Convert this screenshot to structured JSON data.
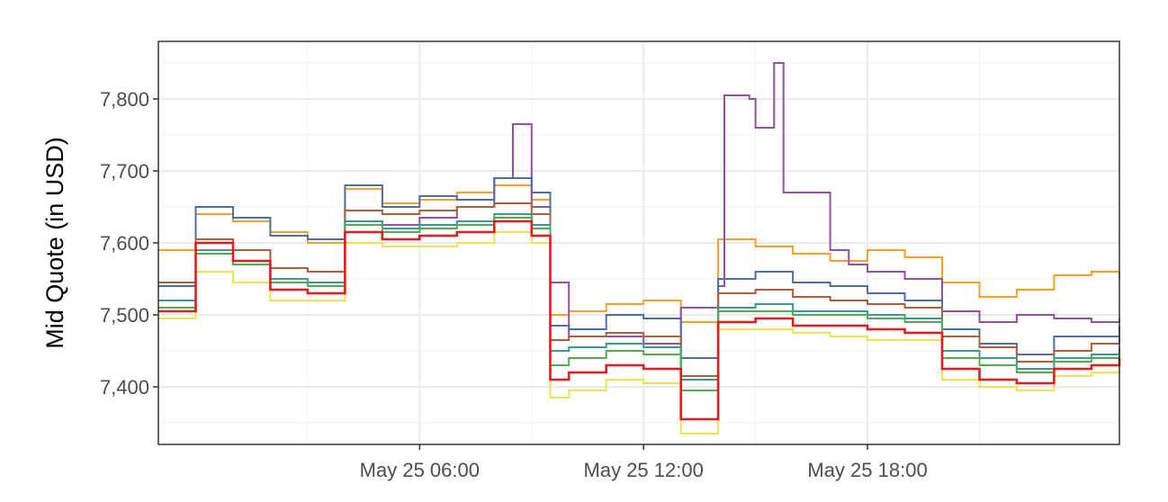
{
  "chart_data": {
    "type": "line",
    "title": "",
    "xlabel": "",
    "ylabel": "Mid Quote (in USD)",
    "x_range": [
      "2018-05-24 23:00",
      "2018-05-26 00:45"
    ],
    "ylim": [
      7320,
      7880
    ],
    "x_ticks": [
      {
        "x": "2018-05-25 06:00",
        "label": "May 25 06:00"
      },
      {
        "x": "2018-05-25 12:00",
        "label": "May 25 12:00"
      },
      {
        "x": "2018-05-25 18:00",
        "label": "May 25 18:00"
      }
    ],
    "y_ticks": [
      {
        "y": 7400,
        "label": "7,400"
      },
      {
        "y": 7500,
        "label": "7,500"
      },
      {
        "y": 7600,
        "label": "7,600"
      },
      {
        "y": 7700,
        "label": "7,700"
      },
      {
        "y": 7800,
        "label": "7,800"
      }
    ],
    "grid": true,
    "legend": "none",
    "series": [
      {
        "color": "#ff9f1c",
        "points": [
          [
            "2018-05-24 23:00",
            7590
          ],
          [
            "2018-05-25 00:00",
            7640
          ],
          [
            "2018-05-25 01:00",
            7630
          ],
          [
            "2018-05-25 02:00",
            7615
          ],
          [
            "2018-05-25 03:00",
            7600
          ],
          [
            "2018-05-25 04:00",
            7675
          ],
          [
            "2018-05-25 05:00",
            7655
          ],
          [
            "2018-05-25 06:00",
            7660
          ],
          [
            "2018-05-25 07:00",
            7670
          ],
          [
            "2018-05-25 08:00",
            7680
          ],
          [
            "2018-05-25 09:00",
            7660
          ],
          [
            "2018-05-25 09:30",
            7500
          ],
          [
            "2018-05-25 10:00",
            7505
          ],
          [
            "2018-05-25 11:00",
            7515
          ],
          [
            "2018-05-25 12:00",
            7520
          ],
          [
            "2018-05-25 13:00",
            7490
          ],
          [
            "2018-05-25 14:00",
            7605
          ],
          [
            "2018-05-25 15:00",
            7595
          ],
          [
            "2018-05-25 16:00",
            7585
          ],
          [
            "2018-05-25 17:00",
            7575
          ],
          [
            "2018-05-25 18:00",
            7590
          ],
          [
            "2018-05-25 19:00",
            7580
          ],
          [
            "2018-05-25 20:00",
            7545
          ],
          [
            "2018-05-25 21:00",
            7525
          ],
          [
            "2018-05-25 22:00",
            7535
          ],
          [
            "2018-05-25 23:00",
            7555
          ],
          [
            "2018-05-26 00:00",
            7560
          ],
          [
            "2018-05-26 00:45",
            7550
          ]
        ]
      },
      {
        "color": "#984ea3",
        "points": [
          [
            "2018-05-24 23:00",
            7520
          ],
          [
            "2018-05-25 00:00",
            7600
          ],
          [
            "2018-05-25 01:00",
            7590
          ],
          [
            "2018-05-25 02:00",
            7565
          ],
          [
            "2018-05-25 03:00",
            7560
          ],
          [
            "2018-05-25 04:00",
            7630
          ],
          [
            "2018-05-25 05:00",
            7625
          ],
          [
            "2018-05-25 06:00",
            7635
          ],
          [
            "2018-05-25 07:00",
            7650
          ],
          [
            "2018-05-25 08:00",
            7690
          ],
          [
            "2018-05-25 08:30",
            7765
          ],
          [
            "2018-05-25 09:00",
            7650
          ],
          [
            "2018-05-25 09:30",
            7545
          ],
          [
            "2018-05-25 10:00",
            7470
          ],
          [
            "2018-05-25 11:00",
            7470
          ],
          [
            "2018-05-25 12:00",
            7460
          ],
          [
            "2018-05-25 13:00",
            7510
          ],
          [
            "2018-05-25 14:00",
            7540
          ],
          [
            "2018-05-25 14:10",
            7805
          ],
          [
            "2018-05-25 14:50",
            7800
          ],
          [
            "2018-05-25 15:00",
            7760
          ],
          [
            "2018-05-25 15:30",
            7850
          ],
          [
            "2018-05-25 15:45",
            7670
          ],
          [
            "2018-05-25 16:30",
            7670
          ],
          [
            "2018-05-25 17:00",
            7590
          ],
          [
            "2018-05-25 17:30",
            7570
          ],
          [
            "2018-05-25 18:00",
            7560
          ],
          [
            "2018-05-25 19:00",
            7550
          ],
          [
            "2018-05-25 20:00",
            7505
          ],
          [
            "2018-05-25 21:00",
            7490
          ],
          [
            "2018-05-25 22:00",
            7500
          ],
          [
            "2018-05-25 23:00",
            7495
          ],
          [
            "2018-05-26 00:00",
            7490
          ],
          [
            "2018-05-26 00:45",
            7495
          ]
        ]
      },
      {
        "color": "#4a6fb0",
        "points": [
          [
            "2018-05-24 23:00",
            7540
          ],
          [
            "2018-05-25 00:00",
            7650
          ],
          [
            "2018-05-25 01:00",
            7635
          ],
          [
            "2018-05-25 02:00",
            7610
          ],
          [
            "2018-05-25 03:00",
            7605
          ],
          [
            "2018-05-25 04:00",
            7680
          ],
          [
            "2018-05-25 05:00",
            7650
          ],
          [
            "2018-05-25 06:00",
            7665
          ],
          [
            "2018-05-25 07:00",
            7660
          ],
          [
            "2018-05-25 08:00",
            7690
          ],
          [
            "2018-05-25 09:00",
            7670
          ],
          [
            "2018-05-25 09:30",
            7485
          ],
          [
            "2018-05-25 10:00",
            7480
          ],
          [
            "2018-05-25 11:00",
            7500
          ],
          [
            "2018-05-25 12:00",
            7495
          ],
          [
            "2018-05-25 13:00",
            7440
          ],
          [
            "2018-05-25 14:00",
            7550
          ],
          [
            "2018-05-25 15:00",
            7560
          ],
          [
            "2018-05-25 16:00",
            7545
          ],
          [
            "2018-05-25 17:00",
            7540
          ],
          [
            "2018-05-25 18:00",
            7530
          ],
          [
            "2018-05-25 19:00",
            7520
          ],
          [
            "2018-05-25 20:00",
            7480
          ],
          [
            "2018-05-25 21:00",
            7460
          ],
          [
            "2018-05-25 22:00",
            7445
          ],
          [
            "2018-05-25 23:00",
            7470
          ],
          [
            "2018-05-26 00:00",
            7470
          ],
          [
            "2018-05-26 00:45",
            7485
          ]
        ]
      },
      {
        "color": "#b85c38",
        "points": [
          [
            "2018-05-24 23:00",
            7545
          ],
          [
            "2018-05-25 00:00",
            7605
          ],
          [
            "2018-05-25 01:00",
            7590
          ],
          [
            "2018-05-25 02:00",
            7565
          ],
          [
            "2018-05-25 03:00",
            7560
          ],
          [
            "2018-05-25 04:00",
            7645
          ],
          [
            "2018-05-25 05:00",
            7640
          ],
          [
            "2018-05-25 06:00",
            7645
          ],
          [
            "2018-05-25 07:00",
            7650
          ],
          [
            "2018-05-25 08:00",
            7655
          ],
          [
            "2018-05-25 09:00",
            7640
          ],
          [
            "2018-05-25 09:30",
            7465
          ],
          [
            "2018-05-25 10:00",
            7470
          ],
          [
            "2018-05-25 11:00",
            7475
          ],
          [
            "2018-05-25 12:00",
            7470
          ],
          [
            "2018-05-25 13:00",
            7415
          ],
          [
            "2018-05-25 14:00",
            7530
          ],
          [
            "2018-05-25 15:00",
            7535
          ],
          [
            "2018-05-25 16:00",
            7525
          ],
          [
            "2018-05-25 17:00",
            7520
          ],
          [
            "2018-05-25 18:00",
            7515
          ],
          [
            "2018-05-25 19:00",
            7510
          ],
          [
            "2018-05-25 20:00",
            7470
          ],
          [
            "2018-05-25 21:00",
            7455
          ],
          [
            "2018-05-25 22:00",
            7435
          ],
          [
            "2018-05-25 23:00",
            7450
          ],
          [
            "2018-05-26 00:00",
            7460
          ],
          [
            "2018-05-26 00:45",
            7475
          ]
        ]
      },
      {
        "color": "#2f9e93",
        "points": [
          [
            "2018-05-24 23:00",
            7520
          ],
          [
            "2018-05-25 00:00",
            7590
          ],
          [
            "2018-05-25 01:00",
            7575
          ],
          [
            "2018-05-25 02:00",
            7550
          ],
          [
            "2018-05-25 03:00",
            7545
          ],
          [
            "2018-05-25 04:00",
            7630
          ],
          [
            "2018-05-25 05:00",
            7620
          ],
          [
            "2018-05-25 06:00",
            7625
          ],
          [
            "2018-05-25 07:00",
            7630
          ],
          [
            "2018-05-25 08:00",
            7640
          ],
          [
            "2018-05-25 09:00",
            7625
          ],
          [
            "2018-05-25 09:30",
            7450
          ],
          [
            "2018-05-25 10:00",
            7455
          ],
          [
            "2018-05-25 11:00",
            7460
          ],
          [
            "2018-05-25 12:00",
            7455
          ],
          [
            "2018-05-25 13:00",
            7410
          ],
          [
            "2018-05-25 14:00",
            7510
          ],
          [
            "2018-05-25 15:00",
            7515
          ],
          [
            "2018-05-25 16:00",
            7505
          ],
          [
            "2018-05-25 17:00",
            7505
          ],
          [
            "2018-05-25 18:00",
            7500
          ],
          [
            "2018-05-25 19:00",
            7495
          ],
          [
            "2018-05-25 20:00",
            7450
          ],
          [
            "2018-05-25 21:00",
            7440
          ],
          [
            "2018-05-25 22:00",
            7425
          ],
          [
            "2018-05-25 23:00",
            7440
          ],
          [
            "2018-05-26 00:00",
            7445
          ],
          [
            "2018-05-26 00:45",
            7455
          ]
        ]
      },
      {
        "color": "#4daf4a",
        "points": [
          [
            "2018-05-24 23:00",
            7510
          ],
          [
            "2018-05-25 00:00",
            7585
          ],
          [
            "2018-05-25 01:00",
            7570
          ],
          [
            "2018-05-25 02:00",
            7545
          ],
          [
            "2018-05-25 03:00",
            7540
          ],
          [
            "2018-05-25 04:00",
            7625
          ],
          [
            "2018-05-25 05:00",
            7615
          ],
          [
            "2018-05-25 06:00",
            7620
          ],
          [
            "2018-05-25 07:00",
            7625
          ],
          [
            "2018-05-25 08:00",
            7635
          ],
          [
            "2018-05-25 09:00",
            7620
          ],
          [
            "2018-05-25 09:30",
            7430
          ],
          [
            "2018-05-25 10:00",
            7440
          ],
          [
            "2018-05-25 11:00",
            7450
          ],
          [
            "2018-05-25 12:00",
            7445
          ],
          [
            "2018-05-25 13:00",
            7395
          ],
          [
            "2018-05-25 14:00",
            7505
          ],
          [
            "2018-05-25 15:00",
            7505
          ],
          [
            "2018-05-25 16:00",
            7500
          ],
          [
            "2018-05-25 17:00",
            7500
          ],
          [
            "2018-05-25 18:00",
            7495
          ],
          [
            "2018-05-25 19:00",
            7490
          ],
          [
            "2018-05-25 20:00",
            7440
          ],
          [
            "2018-05-25 21:00",
            7430
          ],
          [
            "2018-05-25 22:00",
            7420
          ],
          [
            "2018-05-25 23:00",
            7435
          ],
          [
            "2018-05-26 00:00",
            7440
          ],
          [
            "2018-05-26 00:45",
            7450
          ]
        ]
      },
      {
        "color": "#f0e442",
        "points": [
          [
            "2018-05-24 23:00",
            7495
          ],
          [
            "2018-05-25 00:00",
            7560
          ],
          [
            "2018-05-25 01:00",
            7545
          ],
          [
            "2018-05-25 02:00",
            7520
          ],
          [
            "2018-05-25 03:00",
            7520
          ],
          [
            "2018-05-25 04:00",
            7600
          ],
          [
            "2018-05-25 05:00",
            7595
          ],
          [
            "2018-05-25 06:00",
            7595
          ],
          [
            "2018-05-25 07:00",
            7600
          ],
          [
            "2018-05-25 08:00",
            7615
          ],
          [
            "2018-05-25 09:00",
            7600
          ],
          [
            "2018-05-25 09:30",
            7385
          ],
          [
            "2018-05-25 10:00",
            7395
          ],
          [
            "2018-05-25 11:00",
            7410
          ],
          [
            "2018-05-25 12:00",
            7405
          ],
          [
            "2018-05-25 13:00",
            7335
          ],
          [
            "2018-05-25 14:00",
            7480
          ],
          [
            "2018-05-25 15:00",
            7480
          ],
          [
            "2018-05-25 16:00",
            7475
          ],
          [
            "2018-05-25 17:00",
            7470
          ],
          [
            "2018-05-25 18:00",
            7465
          ],
          [
            "2018-05-25 19:00",
            7465
          ],
          [
            "2018-05-25 20:00",
            7410
          ],
          [
            "2018-05-25 21:00",
            7400
          ],
          [
            "2018-05-25 22:00",
            7395
          ],
          [
            "2018-05-25 23:00",
            7415
          ],
          [
            "2018-05-26 00:00",
            7420
          ],
          [
            "2018-05-26 00:45",
            7430
          ]
        ]
      },
      {
        "color": "#e41a1c",
        "points": [
          [
            "2018-05-24 23:00",
            7505
          ],
          [
            "2018-05-25 00:00",
            7600
          ],
          [
            "2018-05-25 01:00",
            7575
          ],
          [
            "2018-05-25 02:00",
            7535
          ],
          [
            "2018-05-25 03:00",
            7530
          ],
          [
            "2018-05-25 04:00",
            7615
          ],
          [
            "2018-05-25 05:00",
            7605
          ],
          [
            "2018-05-25 06:00",
            7610
          ],
          [
            "2018-05-25 07:00",
            7615
          ],
          [
            "2018-05-25 08:00",
            7630
          ],
          [
            "2018-05-25 09:00",
            7610
          ],
          [
            "2018-05-25 09:30",
            7410
          ],
          [
            "2018-05-25 10:00",
            7420
          ],
          [
            "2018-05-25 11:00",
            7430
          ],
          [
            "2018-05-25 12:00",
            7425
          ],
          [
            "2018-05-25 13:00",
            7355
          ],
          [
            "2018-05-25 14:00",
            7490
          ],
          [
            "2018-05-25 15:00",
            7495
          ],
          [
            "2018-05-25 16:00",
            7485
          ],
          [
            "2018-05-25 17:00",
            7485
          ],
          [
            "2018-05-25 18:00",
            7480
          ],
          [
            "2018-05-25 19:00",
            7475
          ],
          [
            "2018-05-25 20:00",
            7425
          ],
          [
            "2018-05-25 21:00",
            7410
          ],
          [
            "2018-05-25 22:00",
            7405
          ],
          [
            "2018-05-25 23:00",
            7425
          ],
          [
            "2018-05-26 00:00",
            7430
          ],
          [
            "2018-05-26 00:45",
            7440
          ]
        ]
      }
    ]
  }
}
